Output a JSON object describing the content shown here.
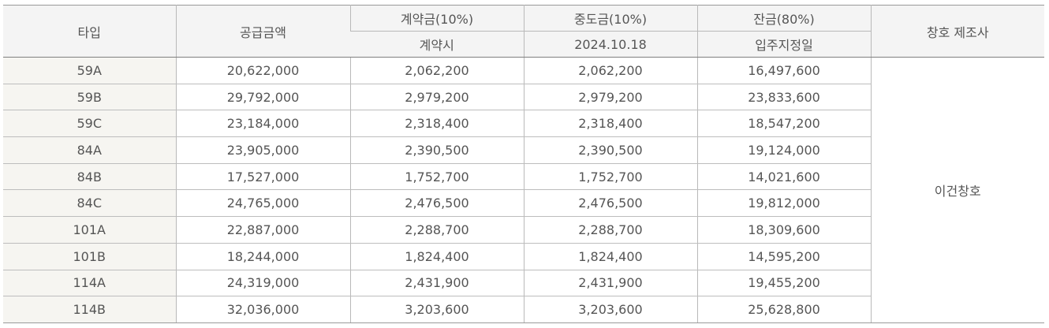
{
  "headers": {
    "type": "타입",
    "supply_amount": "공급금액",
    "contract": {
      "label": "계약금(10%)",
      "sub": "계약시"
    },
    "middle": {
      "label": "중도금(10%)",
      "sub": "2024.10.18"
    },
    "balance": {
      "label": "잔금(80%)",
      "sub": "입주지정일"
    },
    "maker": "창호 제조사"
  },
  "maker_value": "이건창호",
  "rows": [
    {
      "type": "59A",
      "supply": "20,622,000",
      "contract": "2,062,200",
      "middle": "2,062,200",
      "balance": "16,497,600"
    },
    {
      "type": "59B",
      "supply": "29,792,000",
      "contract": "2,979,200",
      "middle": "2,979,200",
      "balance": "23,833,600"
    },
    {
      "type": "59C",
      "supply": "23,184,000",
      "contract": "2,318,400",
      "middle": "2,318,400",
      "balance": "18,547,200"
    },
    {
      "type": "84A",
      "supply": "23,905,000",
      "contract": "2,390,500",
      "middle": "2,390,500",
      "balance": "19,124,000"
    },
    {
      "type": "84B",
      "supply": "17,527,000",
      "contract": "1,752,700",
      "middle": "1,752,700",
      "balance": "14,021,600"
    },
    {
      "type": "84C",
      "supply": "24,765,000",
      "contract": "2,476,500",
      "middle": "2,476,500",
      "balance": "19,812,000"
    },
    {
      "type": "101A",
      "supply": "22,887,000",
      "contract": "2,288,700",
      "middle": "2,288,700",
      "balance": "18,309,600"
    },
    {
      "type": "101B",
      "supply": "18,244,000",
      "contract": "1,824,400",
      "middle": "1,824,400",
      "balance": "14,595,200"
    },
    {
      "type": "114A",
      "supply": "24,319,000",
      "contract": "2,431,900",
      "middle": "2,431,900",
      "balance": "19,455,200"
    },
    {
      "type": "114B",
      "supply": "32,036,000",
      "contract": "3,203,600",
      "middle": "3,203,600",
      "balance": "25,628,800"
    }
  ]
}
